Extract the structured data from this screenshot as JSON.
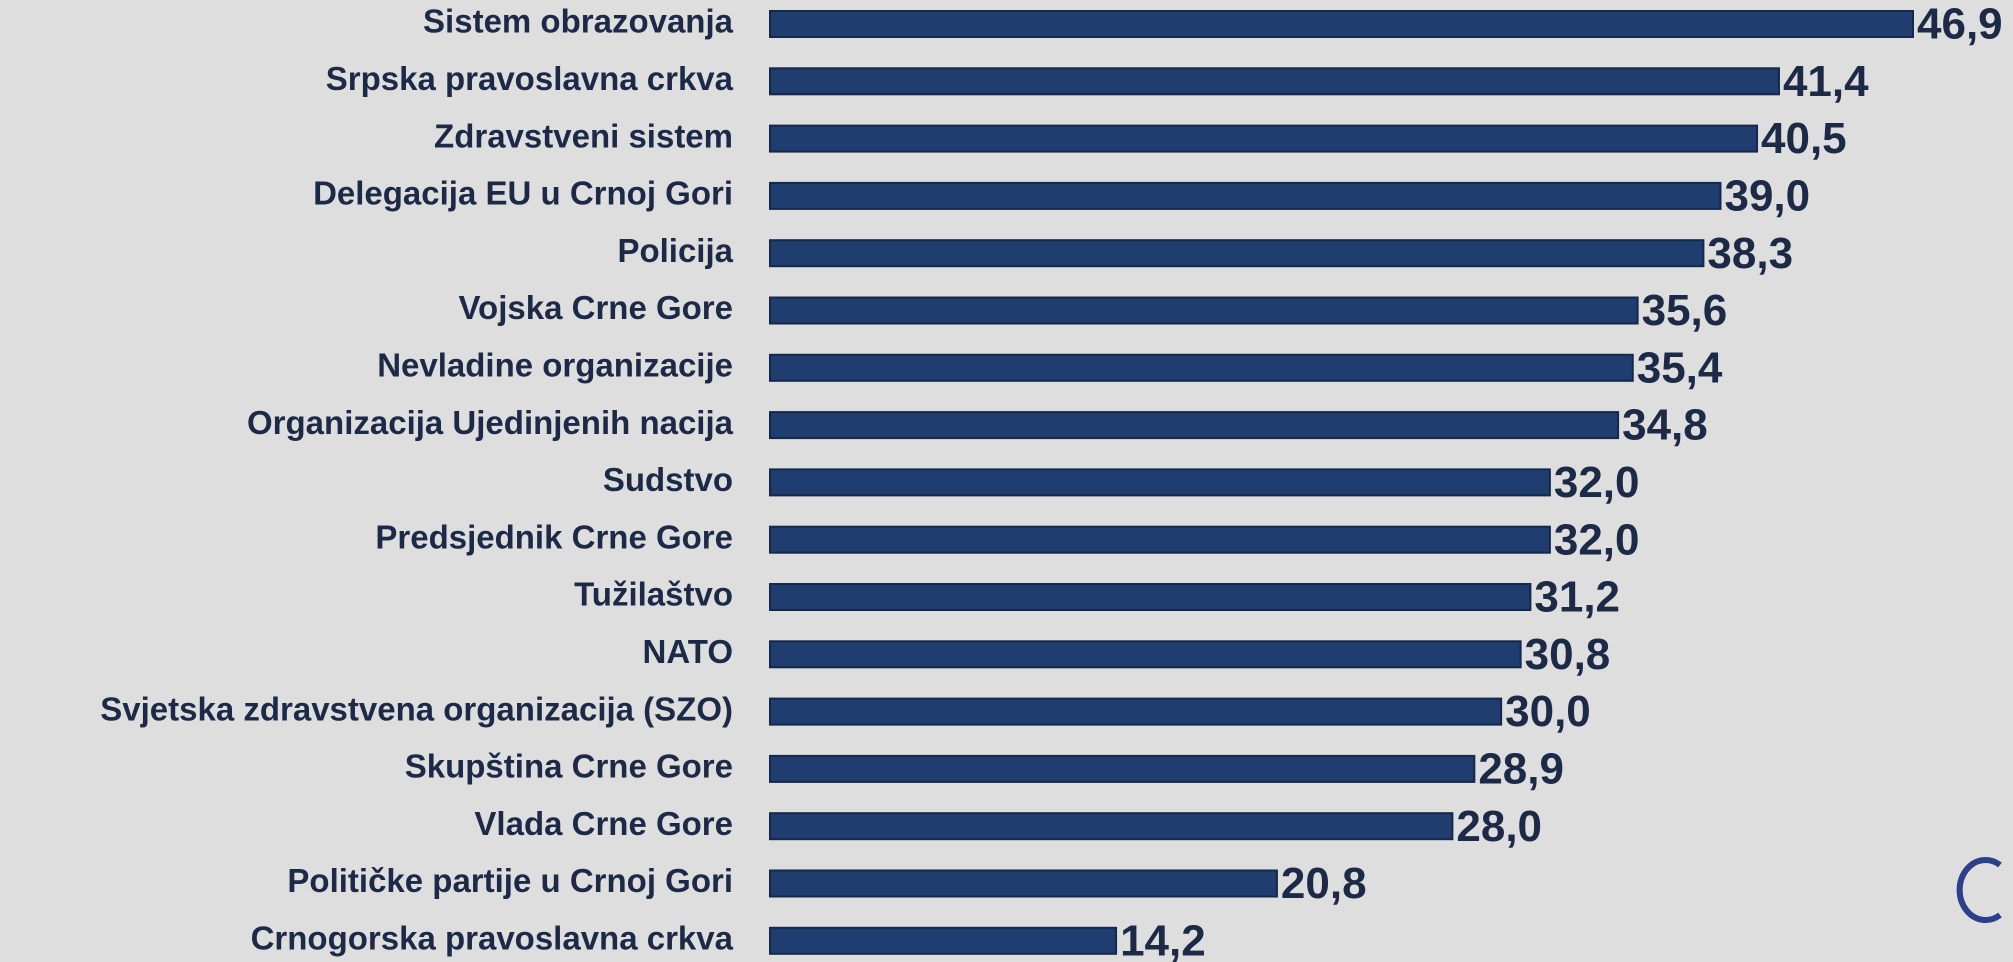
{
  "chart_data": {
    "type": "bar",
    "orientation": "horizontal",
    "color": "#1f3d6e",
    "categories": [
      "Sistem obrazovanja",
      "Srpska pravoslavna crkva",
      "Zdravstveni sistem",
      "Delegacija EU u Crnoj Gori",
      "Policija",
      "Vojska Crne Gore",
      "Nevladine organizacije",
      "Organizacija Ujedinjenih nacija",
      "Sudstvo",
      "Predsjednik Crne Gore",
      "Tužilaštvo",
      "NATO",
      "Svjetska zdravstvena organizacija (SZO)",
      "Skupština Crne Gore",
      "Vlada Crne Gore",
      "Političke partije u Crnoj Gori",
      "Crnogorska pravoslavna crkva"
    ],
    "values": [
      46.9,
      41.4,
      40.5,
      39.0,
      38.3,
      35.6,
      35.4,
      34.8,
      32.0,
      32.0,
      31.2,
      30.8,
      30.0,
      28.9,
      28.0,
      20.8,
      14.2
    ],
    "value_labels": [
      "46,9",
      "41,4",
      "40,5",
      "39,0",
      "38,3",
      "35,6",
      "35,4",
      "34,8",
      "32,0",
      "32,0",
      "31,2",
      "30,8",
      "30,0",
      "28,9",
      "28,0",
      "20,8",
      "14,2"
    ]
  }
}
